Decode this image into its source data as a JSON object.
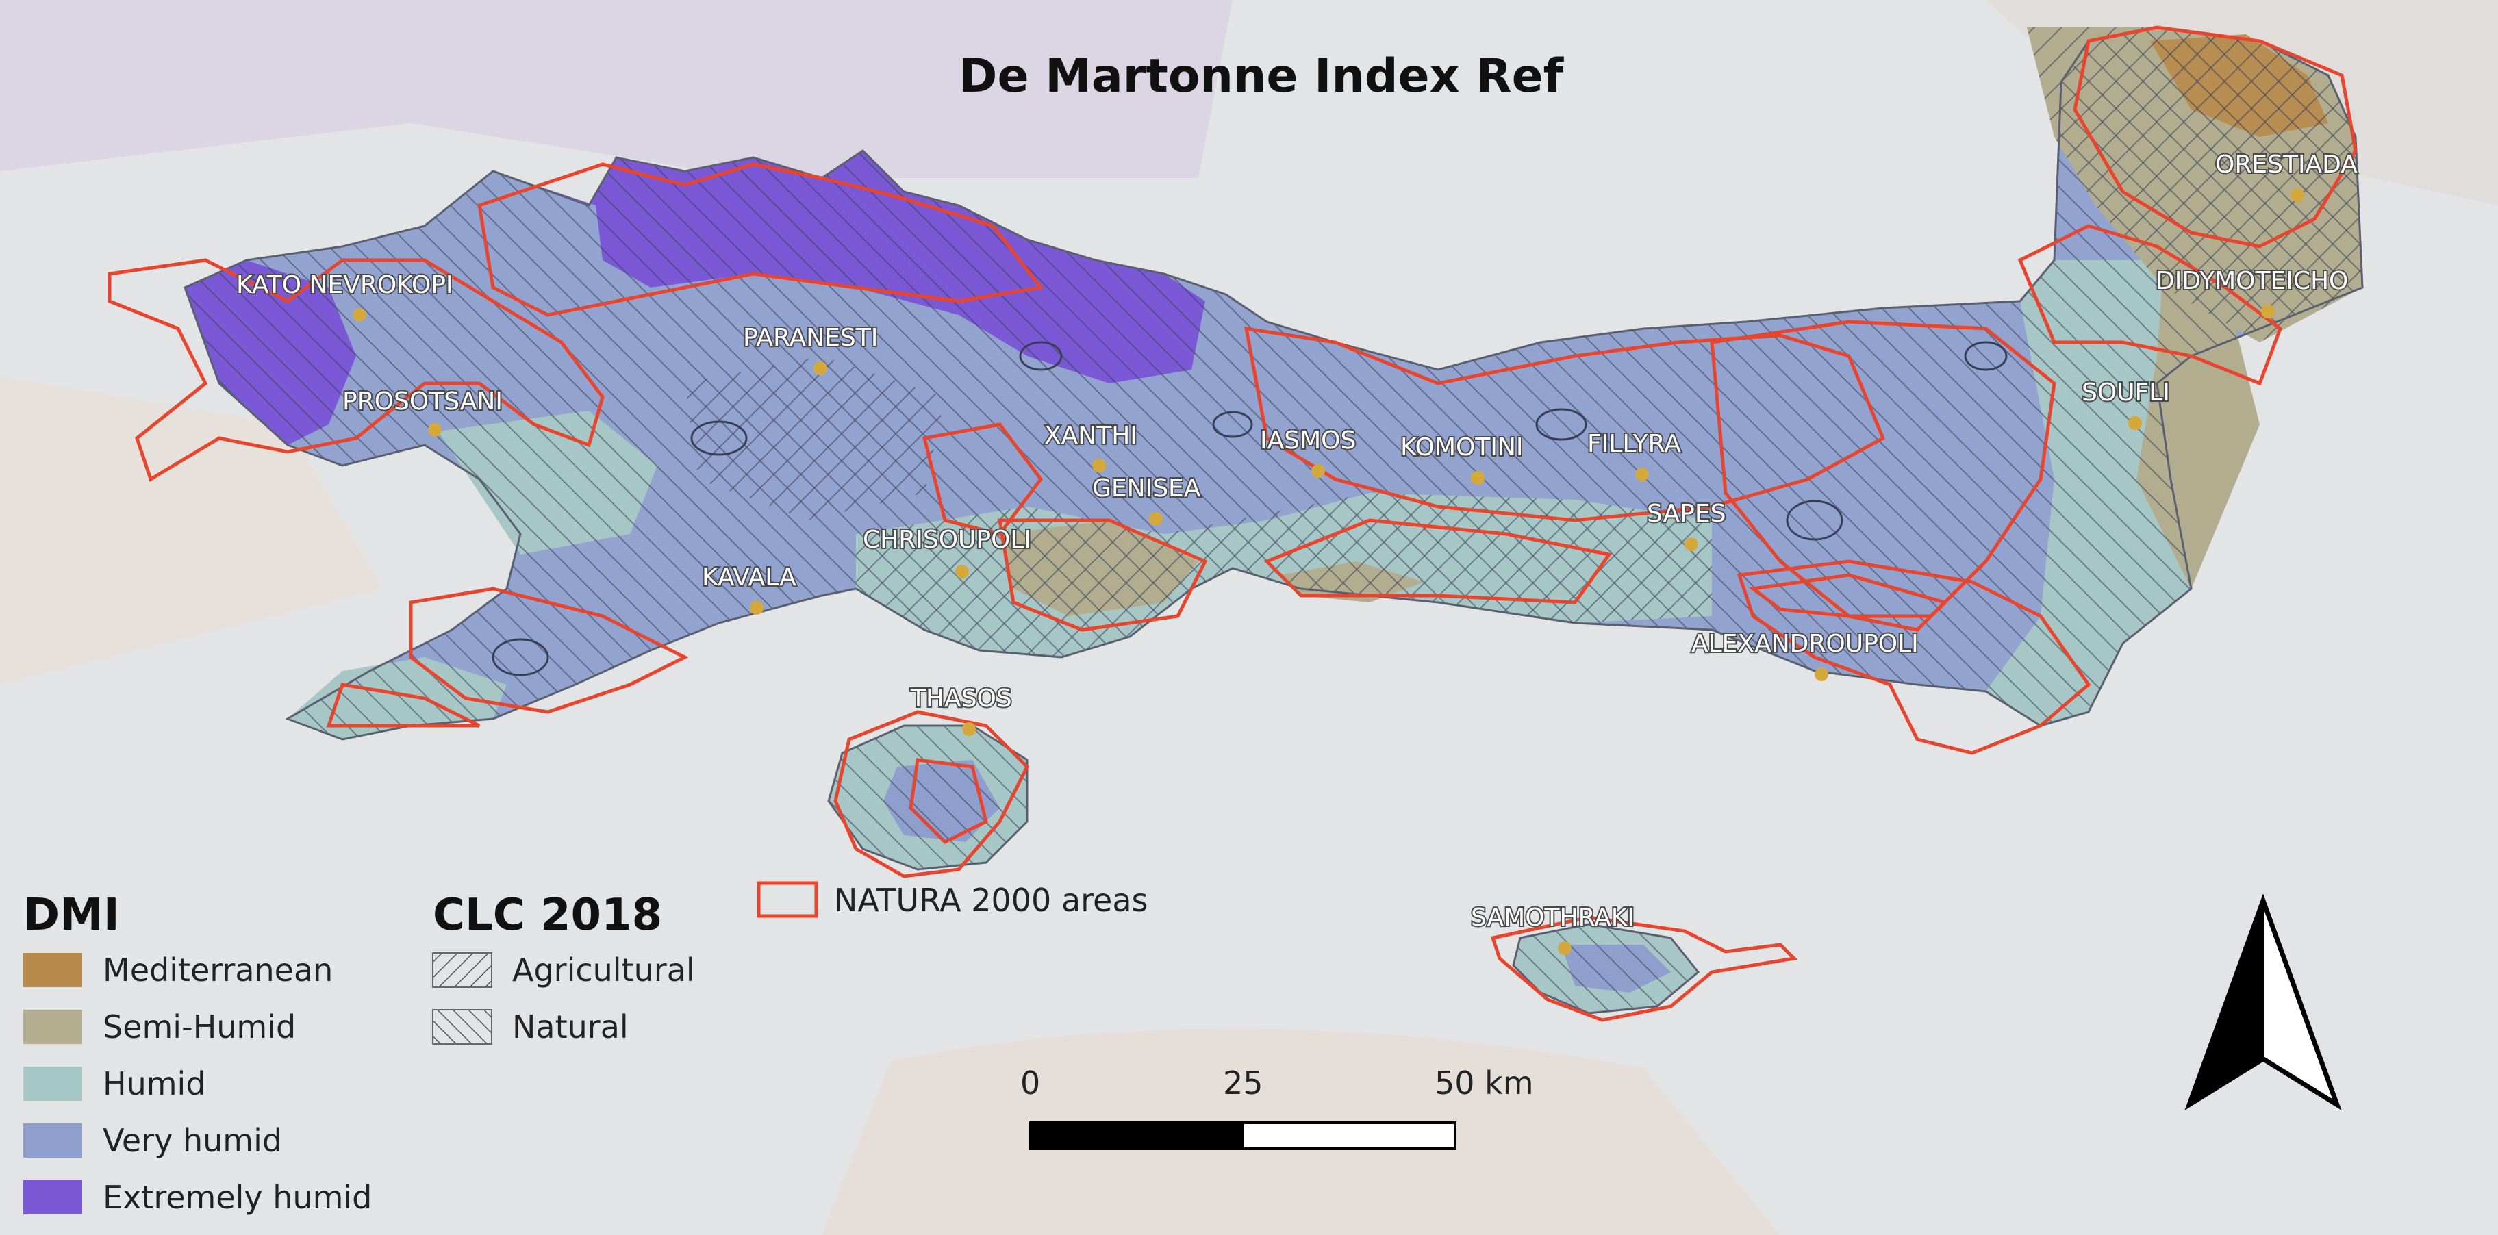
{
  "title": "De Martonne Index Ref",
  "legend": {
    "dmi": {
      "heading": "DMI",
      "items": [
        {
          "label": "Mediterranean",
          "color": "#b88a4a"
        },
        {
          "label": "Semi-Humid",
          "color": "#b3ad8f"
        },
        {
          "label": "Humid",
          "color": "#a6c7c6"
        },
        {
          "label": "Very humid",
          "color": "#8e9fcd"
        },
        {
          "label": "Extremely humid",
          "color": "#7b58d6"
        }
      ]
    },
    "clc": {
      "heading": "CLC 2018",
      "items": [
        {
          "label": "Agricultural",
          "pattern": "backslash-hatch"
        },
        {
          "label": "Natural",
          "pattern": "forward-hatch"
        }
      ]
    },
    "natura": {
      "label": "NATURA 2000 areas",
      "color": "#e8452e"
    }
  },
  "scale_bar": {
    "labels": [
      "0",
      "25",
      "50 km"
    ]
  },
  "north_arrow": {
    "icon": "north-arrow-icon"
  },
  "places": [
    {
      "name": "KATO NEVROKOPI"
    },
    {
      "name": "PARANESTI"
    },
    {
      "name": "PROSOTSANI"
    },
    {
      "name": "XANTHI"
    },
    {
      "name": "IASMOS"
    },
    {
      "name": "KOMOTINI"
    },
    {
      "name": "FILLYRA"
    },
    {
      "name": "GENISEA"
    },
    {
      "name": "SAPES"
    },
    {
      "name": "CHRISOUPOLI"
    },
    {
      "name": "KAVALA"
    },
    {
      "name": "ALEXANDROUPOLI"
    },
    {
      "name": "THASOS"
    },
    {
      "name": "SAMOTHRAKI"
    },
    {
      "name": "ORESTIADA"
    },
    {
      "name": "DIDYMOTEICHO"
    },
    {
      "name": "SOUFLI"
    }
  ],
  "colors": {
    "natura_outline": "#e8452e",
    "city_dot": "#d4a83a",
    "background": "#e3e4e6"
  }
}
